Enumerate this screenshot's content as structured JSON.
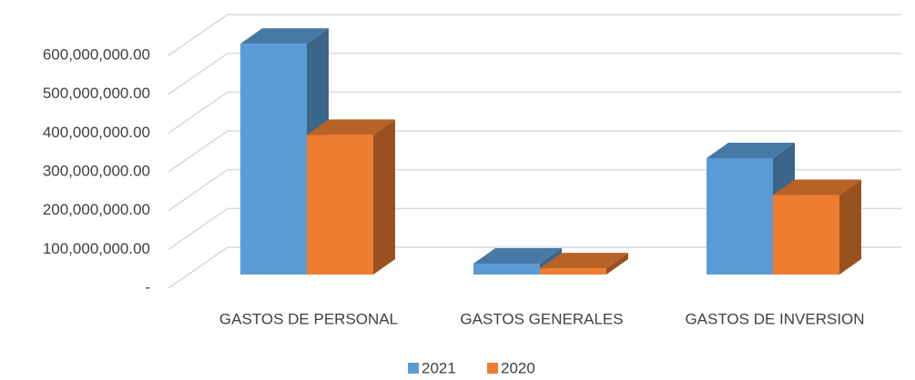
{
  "chart_data": {
    "type": "bar3d",
    "categories": [
      "GASTOS DE PERSONAL",
      "GASTOS GENERALES",
      "GASTOS DE INVERSION"
    ],
    "series": [
      {
        "name": "2021",
        "color": "#5b9bd5",
        "values": [
          595000000,
          28000000,
          300000000
        ]
      },
      {
        "name": "2020",
        "color": "#ed7d31",
        "values": [
          360000000,
          16000000,
          205000000
        ]
      }
    ],
    "ylim": [
      0,
      600000000
    ],
    "yticks": [
      {
        "value": 0,
        "label": "-"
      },
      {
        "value": 100000000,
        "label": "100,000,000.00"
      },
      {
        "value": 200000000,
        "label": "200,000,000.00"
      },
      {
        "value": 300000000,
        "label": "300,000,000.00"
      },
      {
        "value": 400000000,
        "label": "400,000,000.00"
      },
      {
        "value": 500000000,
        "label": "500,000,000.00"
      },
      {
        "value": 600000000,
        "label": "600,000,000.00"
      }
    ],
    "grid": true,
    "legend": "bottom"
  }
}
